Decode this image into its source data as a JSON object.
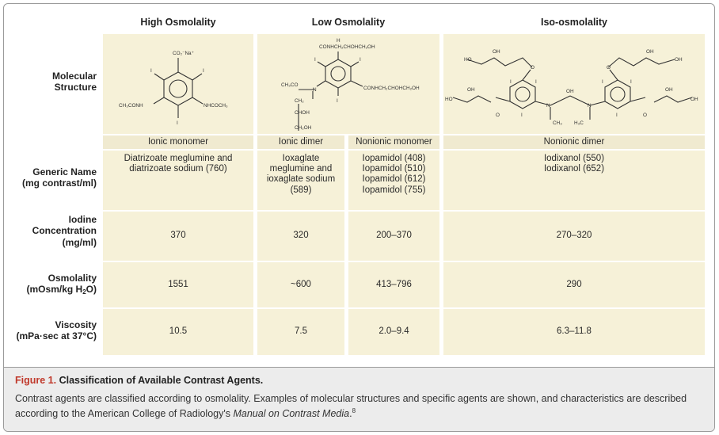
{
  "columns": {
    "high": "High Osmolality",
    "low": "Low Osmolality",
    "iso": "Iso-osmolality"
  },
  "row_labels": {
    "structure_1": "Molecular",
    "structure_2": "Structure",
    "generic_1": "Generic Name",
    "generic_2": "(mg contrast/ml)",
    "iodine_1": "Iodine",
    "iodine_2": "Concentration",
    "iodine_3": "(mg/ml)",
    "osmolality_1": "Osmolality",
    "osmolality_2_pre": "(mOsm/kg H",
    "osmolality_2_sub": "2",
    "osmolality_2_post": "O)",
    "viscosity_1": "Viscosity",
    "viscosity_2": "(mPa·sec at 37°C)"
  },
  "types": [
    "Ionic monomer",
    "Ionic dimer",
    "Nonionic monomer",
    "Nonionic dimer"
  ],
  "generic_names": [
    [
      "Diatrizoate meglumine and",
      "diatrizoate sodium (760)"
    ],
    [
      "Ioxaglate",
      "meglumine and",
      "ioxaglate sodium",
      "(589)"
    ],
    [
      "Iopamidol (408)",
      "Iopamidol (510)",
      "Iopamidol (612)",
      "Iopamidol (755)"
    ],
    [
      "Iodixanol (550)",
      "Iodixanol (652)"
    ]
  ],
  "iodine": [
    "370",
    "320",
    "200–370",
    "270–320"
  ],
  "osmolality": [
    "1551",
    "~600",
    "413–796",
    "290"
  ],
  "viscosity": [
    "10.5",
    "7.5",
    "2.0–9.4",
    "6.3–11.8"
  ],
  "chem_labels": {
    "co2na": "CO₂⁻Na⁺",
    "i": "I",
    "ch3conh": "CH₃CONH",
    "nhcoch3": "NHCOCH₃",
    "h": "H",
    "conhch2choh": "CONHCH₂CHOHCH₂OH",
    "ch3co": "CH₃CO",
    "n": "N",
    "ch2": "CH₂",
    "choh": "CHOH",
    "ch2oh": "CH₂OH",
    "oh": "OH",
    "ho": "HO",
    "o": "O",
    "ch3": "CH₃",
    "h3c": "H₃C"
  },
  "caption": {
    "label": "Figure 1.",
    "title": " Classification of Available Contrast Agents.",
    "text_1": "Contrast agents are classified according to osmolality. Examples of molecular structures and specific agents are shown, and characteristics are described according to the American College of Radiology's ",
    "italic": "Manual on Contrast Media",
    "text_2": ".",
    "ref": "8"
  }
}
